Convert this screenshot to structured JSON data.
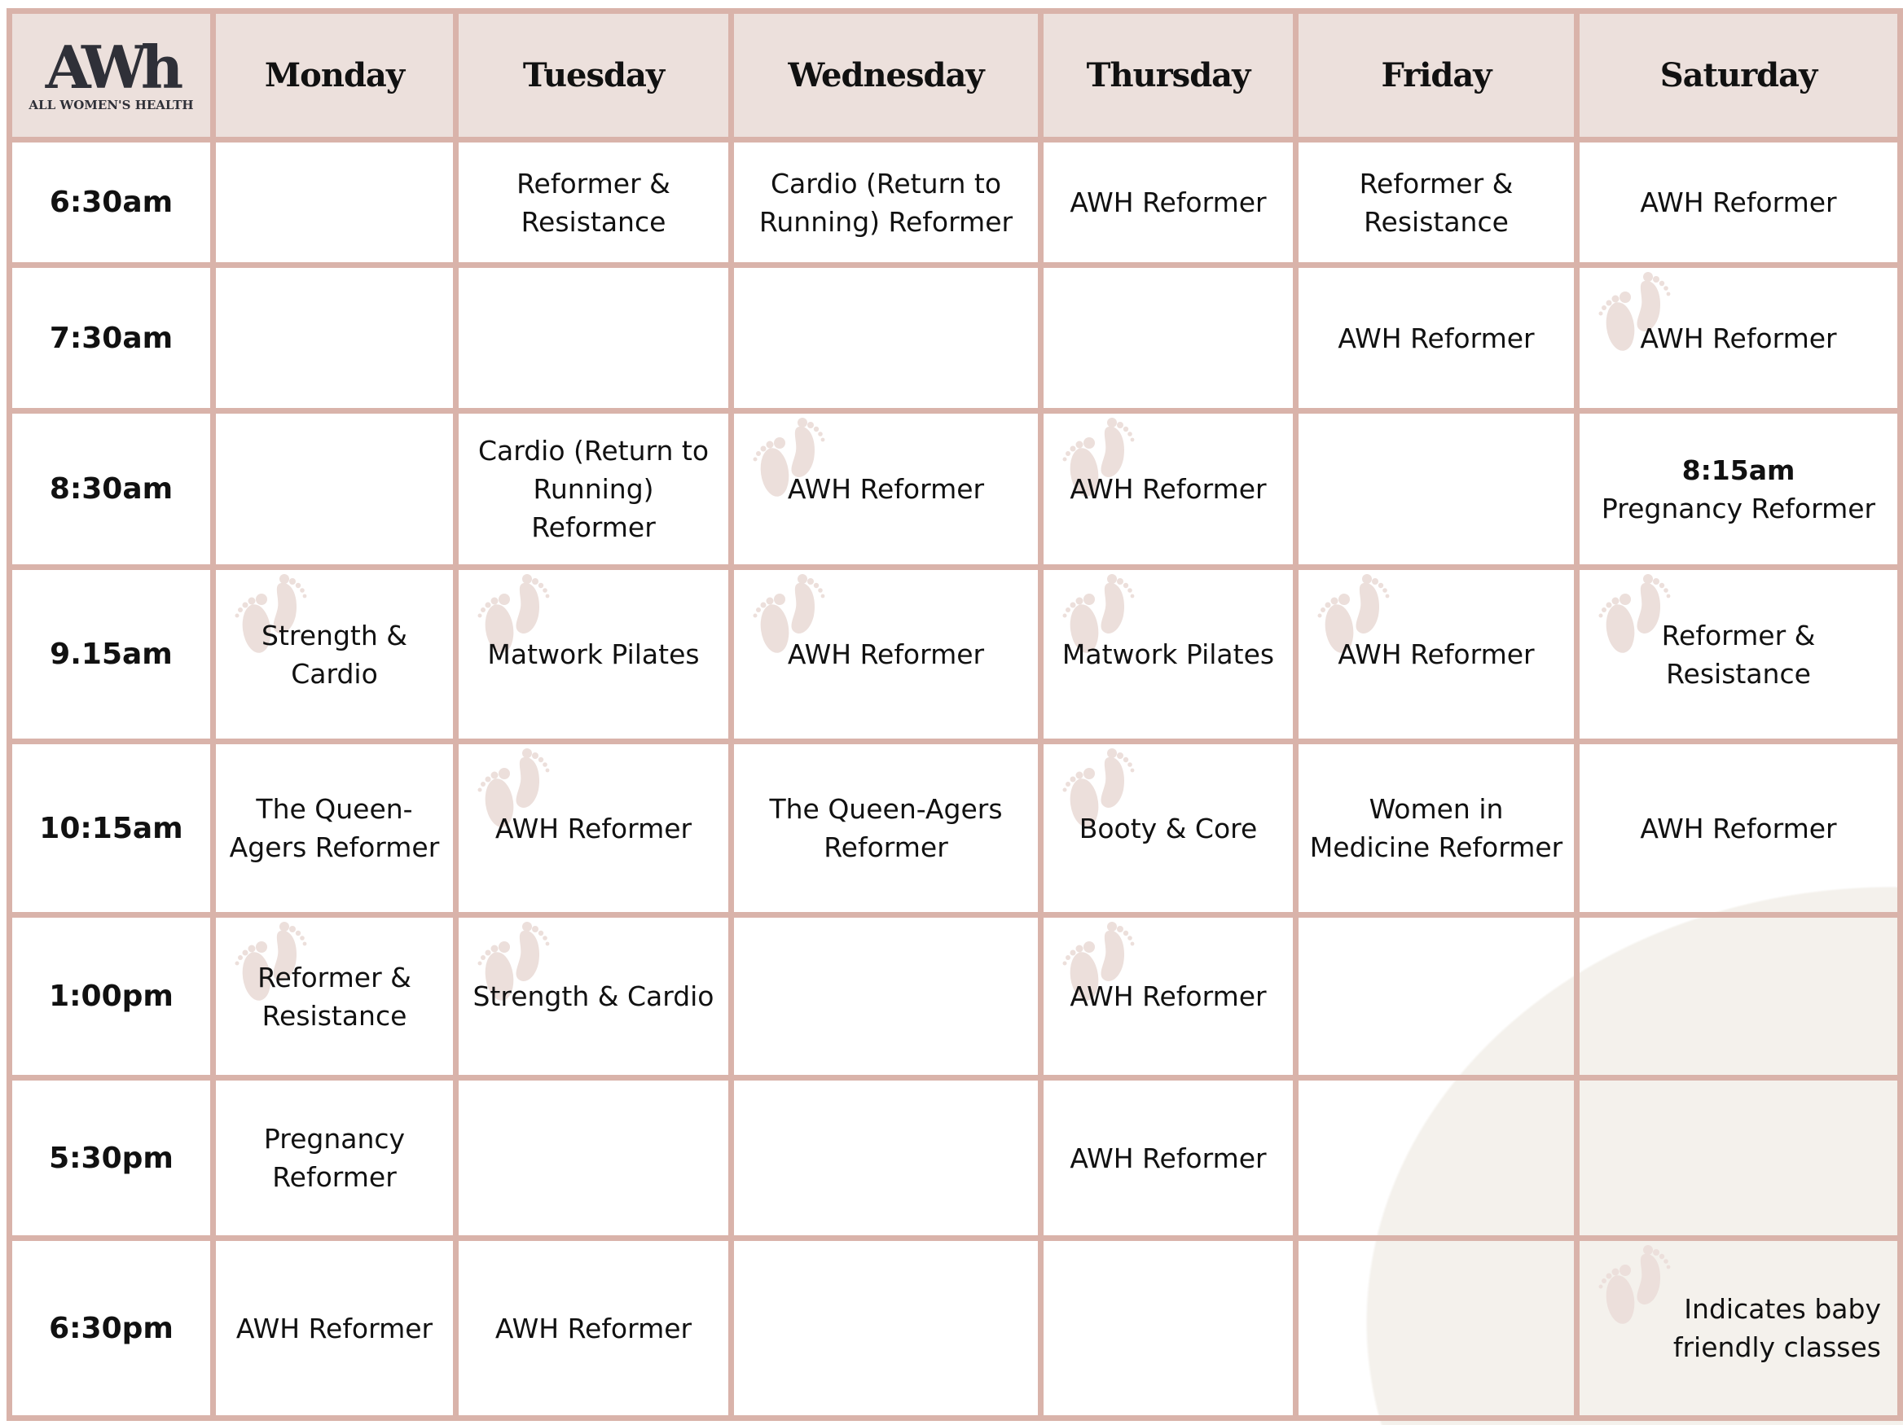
{
  "logo": {
    "mark": "AWh",
    "sub_left": "ALL ",
    "sub_bold": "WOMEN'S",
    "sub_right": " HEALTH"
  },
  "days": [
    "Monday",
    "Tuesday",
    "Wednesday",
    "Thursday",
    "Friday",
    "Saturday"
  ],
  "colors": {
    "border": "#d9b3aa",
    "header_bg": "#ece0dc",
    "footprint": "#ecdfdb",
    "blob": "#f4f1ec"
  },
  "footprint_icon": "baby-footprints-icon",
  "rows": [
    {
      "time": "6:30am",
      "classes": [
        {
          "name": ""
        },
        {
          "name": "Reformer & Resistance"
        },
        {
          "name": "Cardio (Return to Running) Reformer"
        },
        {
          "name": "AWH Reformer"
        },
        {
          "name": "Reformer & Resistance"
        },
        {
          "name": "AWH Reformer"
        }
      ]
    },
    {
      "time": "7:30am",
      "classes": [
        {
          "name": ""
        },
        {
          "name": ""
        },
        {
          "name": ""
        },
        {
          "name": ""
        },
        {
          "name": "AWH Reformer"
        },
        {
          "name": "AWH Reformer",
          "baby": true
        }
      ]
    },
    {
      "time": "8:30am",
      "classes": [
        {
          "name": ""
        },
        {
          "name": "Cardio (Return to Running) Reformer"
        },
        {
          "name": "AWH Reformer",
          "baby": true
        },
        {
          "name": "AWH Reformer",
          "baby": true
        },
        {
          "name": ""
        },
        {
          "name": "Pregnancy Reformer",
          "time": "8:15am"
        }
      ]
    },
    {
      "time": "9.15am",
      "classes": [
        {
          "name": "Strength & Cardio",
          "baby": true
        },
        {
          "name": "Matwork Pilates",
          "baby": true
        },
        {
          "name": "AWH Reformer",
          "baby": true
        },
        {
          "name": "Matwork Pilates",
          "baby": true
        },
        {
          "name": "AWH Reformer",
          "baby": true
        },
        {
          "name": "Reformer & Resistance",
          "baby": true
        }
      ]
    },
    {
      "time": "10:15am",
      "classes": [
        {
          "name": "The Queen-Agers Reformer"
        },
        {
          "name": "AWH Reformer",
          "baby": true
        },
        {
          "name": "The Queen-Agers Reformer"
        },
        {
          "name": "Booty & Core",
          "baby": true
        },
        {
          "name": "Women in Medicine Reformer"
        },
        {
          "name": "AWH Reformer"
        }
      ]
    },
    {
      "time": "1:00pm",
      "classes": [
        {
          "name": "Reformer & Resistance",
          "baby": true
        },
        {
          "name": "Strength & Cardio",
          "baby": true
        },
        {
          "name": ""
        },
        {
          "name": "AWH Reformer",
          "baby": true
        },
        {
          "name": ""
        },
        {
          "name": ""
        }
      ]
    },
    {
      "time": "5:30pm",
      "classes": [
        {
          "name": "Pregnancy Reformer"
        },
        {
          "name": ""
        },
        {
          "name": ""
        },
        {
          "name": "AWH Reformer"
        },
        {
          "name": ""
        },
        {
          "name": ""
        }
      ]
    },
    {
      "time": "6:30pm",
      "classes": [
        {
          "name": "AWH Reformer"
        },
        {
          "name": "AWH Reformer"
        },
        {
          "name": ""
        },
        {
          "name": ""
        },
        {
          "name": ""
        },
        {
          "name": "Indicates baby friendly classes",
          "baby": true,
          "legend": true
        }
      ]
    }
  ]
}
